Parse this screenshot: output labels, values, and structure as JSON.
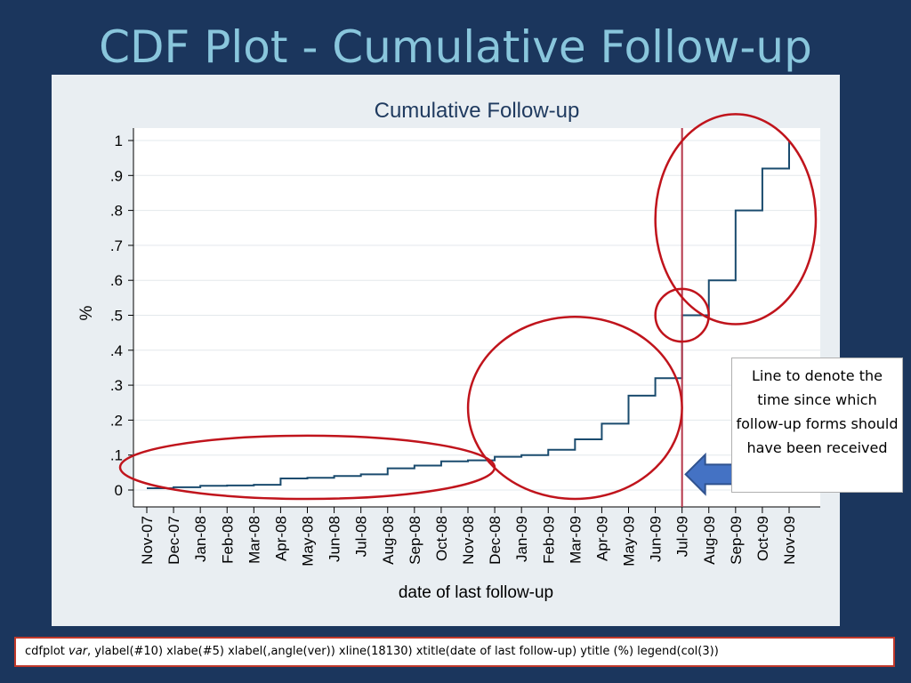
{
  "slide": {
    "title": "CDF Plot - Cumulative Follow-up",
    "callout_text": "Line to denote the time since which follow-up forms should have been received",
    "code": {
      "prefix": "cdfplot ",
      "var": "var",
      "rest": ",  ylabel(#10) xlabe(#5) xlabel(,angle(ver)) xline(18130) xtitle(date of last follow-up) ytitle (%) legend(col(3))"
    }
  },
  "colors": {
    "background": "#1b365d",
    "title": "#89c6dc",
    "line": "#1a4b6e",
    "reference_line": "#b5364a",
    "highlight_ellipse": "#c0141c",
    "arrow": "#4472c4"
  },
  "chart_data": {
    "type": "line",
    "title": "Cumulative Follow-up",
    "xlabel": "date of last follow-up",
    "ylabel": "%",
    "x_ticks": [
      "Nov-07",
      "Dec-07",
      "Jan-08",
      "Feb-08",
      "Mar-08",
      "Apr-08",
      "May-08",
      "Jun-08",
      "Jul-08",
      "Aug-08",
      "Sep-08",
      "Oct-08",
      "Nov-08",
      "Dec-08",
      "Jan-09",
      "Feb-09",
      "Mar-09",
      "Apr-09",
      "May-09",
      "Jun-09",
      "Jul-09",
      "Aug-09",
      "Sep-09",
      "Oct-09",
      "Nov-09"
    ],
    "y_ticks": [
      "0",
      ".1",
      ".2",
      ".3",
      ".4",
      ".5",
      ".6",
      ".7",
      ".8",
      ".9",
      "1"
    ],
    "ylim": [
      0,
      1
    ],
    "grid": true,
    "reference_line": {
      "x": "Jul-09",
      "stata_date": 18130
    },
    "series": [
      {
        "type": "step",
        "x": [
          "Nov-07",
          "Dec-07",
          "Jan-08",
          "Feb-08",
          "Mar-08",
          "Apr-08",
          "May-08",
          "Jun-08",
          "Jul-08",
          "Aug-08",
          "Sep-08",
          "Oct-08",
          "Nov-08",
          "Dec-08",
          "Jan-09",
          "Feb-09",
          "Mar-09",
          "Apr-09",
          "May-09",
          "Jun-09",
          "Jul-09",
          "Aug-09",
          "Sep-09",
          "Oct-09",
          "Nov-09"
        ],
        "y": [
          0.005,
          0.008,
          0.012,
          0.013,
          0.015,
          0.033,
          0.035,
          0.04,
          0.045,
          0.062,
          0.07,
          0.082,
          0.085,
          0.095,
          0.1,
          0.115,
          0.145,
          0.19,
          0.27,
          0.32,
          0.5,
          0.6,
          0.8,
          0.92,
          1.0
        ]
      }
    ],
    "highlights": [
      {
        "from": "Nov-07",
        "to": "Nov-08",
        "y_from": 0,
        "y_to": 0.13
      },
      {
        "from": "Dec-08",
        "to": "Jun-09",
        "y_from": 0.0,
        "y_to": 0.47
      },
      {
        "from": "Jul-09",
        "to": "Jul-09",
        "y_from": 0.45,
        "y_to": 0.55
      },
      {
        "from": "Jul-09",
        "to": "Nov-09",
        "y_from": 0.5,
        "y_to": 1.05
      }
    ]
  }
}
